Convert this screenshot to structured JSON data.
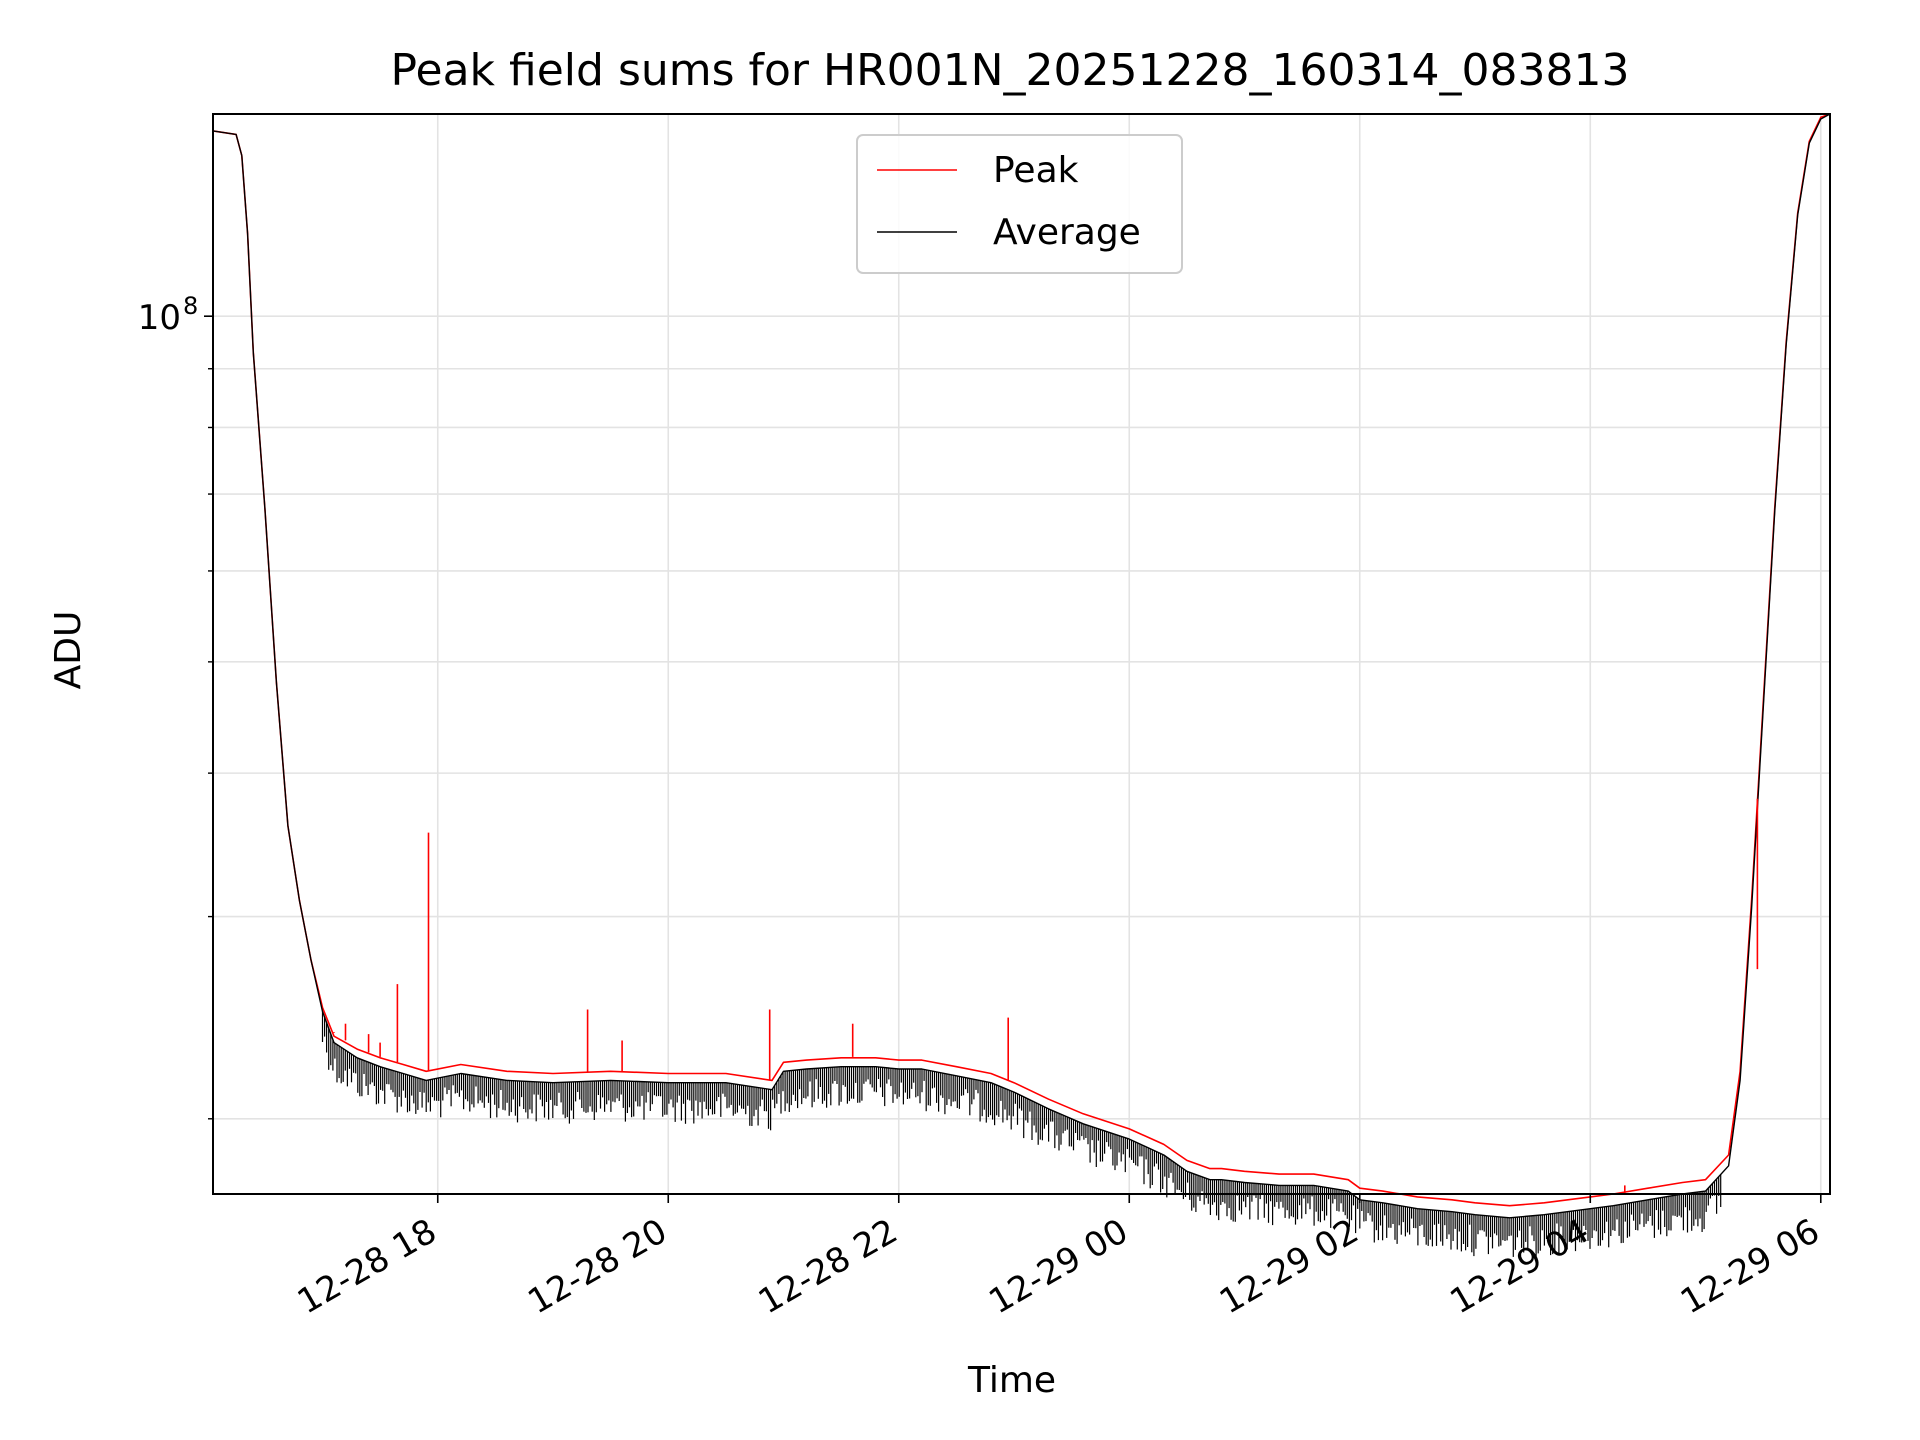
{
  "chart_data": {
    "type": "line",
    "title": "Peak field sums for HR001N_20251228_160314_083813",
    "xlabel": "Time",
    "ylabel": "ADU",
    "yscale": "log",
    "grid": true,
    "legend_position": "upper-center",
    "x_unit": "hours since 2025-12-28 16:00",
    "xlim": [
      16.05,
      30.08
    ],
    "ylim": [
      17200000,
      150000000
    ],
    "x_ticks": [
      {
        "value": 18,
        "label": "12-28 18"
      },
      {
        "value": 20,
        "label": "12-28 20"
      },
      {
        "value": 22,
        "label": "12-28 22"
      },
      {
        "value": 24,
        "label": "12-29 00"
      },
      {
        "value": 26,
        "label": "12-29 02"
      },
      {
        "value": 28,
        "label": "12-29 04"
      },
      {
        "value": 30,
        "label": "12-29 06"
      }
    ],
    "y_major_ticks": [
      {
        "value": 100000000,
        "base": "10",
        "exponent": "8"
      }
    ],
    "y_minor_ticks": [
      20000000,
      30000000,
      40000000,
      50000000,
      60000000,
      70000000,
      80000000,
      90000000,
      200000000
    ],
    "series": [
      {
        "name": "Peak",
        "color": "#ff0000",
        "x": [
          16.05,
          16.25,
          16.3,
          16.35,
          16.4,
          16.5,
          16.6,
          16.7,
          16.8,
          16.9,
          17.0,
          17.1,
          17.3,
          17.5,
          17.7,
          17.9,
          18.2,
          18.6,
          19.0,
          19.5,
          20.0,
          20.5,
          20.9,
          21.0,
          21.2,
          21.5,
          21.8,
          22.0,
          22.2,
          22.5,
          22.8,
          23.0,
          23.3,
          23.6,
          24.0,
          24.3,
          24.5,
          24.7,
          24.8,
          25.0,
          25.3,
          25.6,
          25.9,
          26.0,
          26.2,
          26.5,
          26.8,
          27.0,
          27.3,
          27.6,
          28.0,
          28.2,
          28.5,
          28.8,
          29.0,
          29.2,
          29.3,
          29.4,
          29.5,
          29.6,
          29.7,
          29.8,
          29.9,
          30.0,
          30.08
        ],
        "y": [
          145000000,
          144000000,
          138000000,
          118000000,
          93000000,
          68000000,
          48000000,
          36000000,
          31000000,
          27500000,
          25000000,
          23600000,
          23000000,
          22600000,
          22300000,
          22000000,
          22300000,
          22000000,
          21900000,
          22000000,
          21900000,
          21900000,
          21600000,
          22400000,
          22500000,
          22600000,
          22600000,
          22500000,
          22500000,
          22200000,
          21900000,
          21500000,
          20800000,
          20200000,
          19600000,
          19000000,
          18400000,
          18100000,
          18100000,
          18000000,
          17900000,
          17900000,
          17700000,
          17400000,
          17300000,
          17100000,
          17000000,
          16900000,
          16800000,
          16900000,
          17100000,
          17200000,
          17400000,
          17600000,
          17700000,
          18600000,
          22000000,
          31000000,
          46000000,
          68000000,
          95000000,
          123000000,
          142000000,
          149000000,
          150000000
        ],
        "spikes": [
          {
            "x": 17.1,
            "y": 23800000
          },
          {
            "x": 17.2,
            "y": 24200000
          },
          {
            "x": 17.4,
            "y": 23700000
          },
          {
            "x": 17.5,
            "y": 23300000
          },
          {
            "x": 17.65,
            "y": 26200000
          },
          {
            "x": 17.92,
            "y": 35500000
          },
          {
            "x": 19.3,
            "y": 24900000
          },
          {
            "x": 19.6,
            "y": 23400000
          },
          {
            "x": 20.88,
            "y": 24900000
          },
          {
            "x": 21.6,
            "y": 24200000
          },
          {
            "x": 22.95,
            "y": 24500000
          },
          {
            "x": 28.3,
            "y": 17500000
          },
          {
            "x": 29.45,
            "y": 27000000
          }
        ]
      },
      {
        "name": "Average",
        "color": "#000000",
        "x": [
          16.05,
          16.25,
          16.3,
          16.35,
          16.4,
          16.5,
          16.6,
          16.7,
          16.8,
          16.9,
          17.0,
          17.1,
          17.3,
          17.5,
          17.7,
          17.9,
          18.2,
          18.6,
          19.0,
          19.5,
          20.0,
          20.5,
          20.9,
          21.0,
          21.2,
          21.5,
          21.8,
          22.0,
          22.2,
          22.5,
          22.8,
          23.0,
          23.3,
          23.6,
          24.0,
          24.3,
          24.5,
          24.7,
          24.8,
          25.0,
          25.3,
          25.6,
          25.9,
          26.0,
          26.2,
          26.5,
          26.8,
          27.0,
          27.3,
          27.6,
          28.0,
          28.2,
          28.5,
          28.8,
          29.0,
          29.2,
          29.3,
          29.4,
          29.5,
          29.6,
          29.7,
          29.8,
          29.9,
          30.0,
          30.08
        ],
        "y": [
          145000000,
          144000000,
          138000000,
          118000000,
          93000000,
          68000000,
          48000000,
          36000000,
          31000000,
          27500000,
          24800000,
          23300000,
          22600000,
          22200000,
          21900000,
          21600000,
          21900000,
          21600000,
          21500000,
          21600000,
          21500000,
          21500000,
          21200000,
          22000000,
          22100000,
          22200000,
          22200000,
          22100000,
          22100000,
          21800000,
          21500000,
          21100000,
          20400000,
          19800000,
          19200000,
          18600000,
          18000000,
          17700000,
          17700000,
          17600000,
          17500000,
          17500000,
          17300000,
          17000000,
          16900000,
          16700000,
          16600000,
          16500000,
          16400000,
          16500000,
          16700000,
          16800000,
          17000000,
          17200000,
          17300000,
          18200000,
          21600000,
          30500000,
          45500000,
          67500000,
          94500000,
          122500000,
          141500000,
          148500000,
          150000000
        ]
      }
    ]
  }
}
